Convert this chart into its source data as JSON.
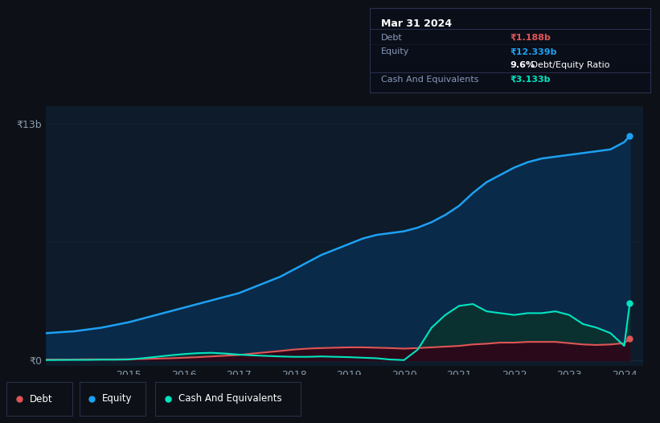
{
  "background_color": "#0d1117",
  "chart_bg_color": "#0d1b2a",
  "ylabel_top": "₹13b",
  "ylabel_zero": "₹0",
  "tooltip": {
    "date": "Mar 31 2024",
    "debt_label": "Debt",
    "debt_value": "₹1.188b",
    "equity_label": "Equity",
    "equity_value": "₹12.339b",
    "ratio_bold": "9.6%",
    "ratio_rest": " Debt/Equity Ratio",
    "cash_label": "Cash And Equivalents",
    "cash_value": "₹3.133b"
  },
  "years": [
    2013.5,
    2014.0,
    2014.25,
    2014.5,
    2014.75,
    2015.0,
    2015.25,
    2015.5,
    2015.75,
    2016.0,
    2016.25,
    2016.5,
    2016.75,
    2017.0,
    2017.25,
    2017.5,
    2017.75,
    2018.0,
    2018.25,
    2018.5,
    2018.75,
    2019.0,
    2019.25,
    2019.5,
    2019.75,
    2020.0,
    2020.25,
    2020.5,
    2020.75,
    2021.0,
    2021.25,
    2021.5,
    2021.75,
    2022.0,
    2022.25,
    2022.5,
    2022.75,
    2023.0,
    2023.25,
    2023.5,
    2023.75,
    2024.0,
    2024.1
  ],
  "equity": [
    1.5,
    1.6,
    1.7,
    1.8,
    1.95,
    2.1,
    2.3,
    2.5,
    2.7,
    2.9,
    3.1,
    3.3,
    3.5,
    3.7,
    4.0,
    4.3,
    4.6,
    5.0,
    5.4,
    5.8,
    6.1,
    6.4,
    6.7,
    6.9,
    7.0,
    7.1,
    7.3,
    7.6,
    8.0,
    8.5,
    9.2,
    9.8,
    10.2,
    10.6,
    10.9,
    11.1,
    11.2,
    11.3,
    11.4,
    11.5,
    11.6,
    12.0,
    12.339
  ],
  "debt": [
    0.05,
    0.05,
    0.06,
    0.06,
    0.06,
    0.07,
    0.08,
    0.1,
    0.12,
    0.15,
    0.18,
    0.22,
    0.26,
    0.3,
    0.38,
    0.45,
    0.52,
    0.6,
    0.65,
    0.68,
    0.7,
    0.72,
    0.72,
    0.7,
    0.68,
    0.65,
    0.68,
    0.72,
    0.76,
    0.8,
    0.88,
    0.92,
    0.98,
    0.98,
    1.02,
    1.02,
    1.02,
    0.95,
    0.88,
    0.85,
    0.88,
    0.95,
    1.188
  ],
  "cash": [
    0.02,
    0.03,
    0.03,
    0.04,
    0.04,
    0.05,
    0.12,
    0.2,
    0.28,
    0.35,
    0.4,
    0.42,
    0.38,
    0.32,
    0.28,
    0.25,
    0.22,
    0.2,
    0.2,
    0.22,
    0.2,
    0.18,
    0.15,
    0.12,
    0.05,
    0.02,
    0.6,
    1.8,
    2.5,
    3.0,
    3.1,
    2.7,
    2.6,
    2.5,
    2.6,
    2.6,
    2.7,
    2.5,
    2.0,
    1.8,
    1.5,
    0.8,
    3.133
  ],
  "x_ticks": [
    2015,
    2016,
    2017,
    2018,
    2019,
    2020,
    2021,
    2022,
    2023,
    2024
  ],
  "equity_color": "#1da1f2",
  "debt_color": "#e05555",
  "cash_color": "#00e5c0",
  "equity_fill_color": "#0a2a4a",
  "cash_fill_color": "#0a3030",
  "debt_fill_color": "#2a0a1a",
  "legend_bg": "#111825",
  "tooltip_bg": "#0a0e18",
  "tooltip_border": "#2a3050",
  "grid_color": "#1a2a3a",
  "axis_color": "#556688",
  "tick_label_color": "#8899aa"
}
